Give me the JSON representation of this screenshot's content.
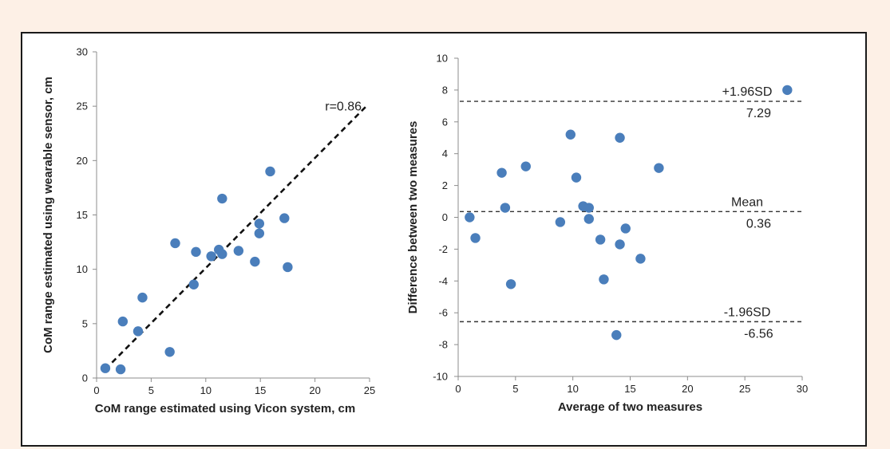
{
  "colors": {
    "page": "#fdf0e6",
    "panel": "#ffffff",
    "marker": "#4a7ebb",
    "axis": "#8c8c8c",
    "line": "#111111"
  },
  "chart_data": [
    {
      "type": "scatter",
      "xlabel": "CoM range estimated using Vicon system, cm",
      "ylabel": "CoM range estimated using wearable sensor, cm",
      "xlim": [
        0,
        25
      ],
      "ylim": [
        0,
        30
      ],
      "xticks": [
        "0",
        "5",
        "10",
        "15",
        "20",
        "25"
      ],
      "yticks": [
        "0",
        "5",
        "10",
        "15",
        "20",
        "25",
        "30"
      ],
      "grid": false,
      "annotation": "r=0.86",
      "trendline": {
        "style": "dashed",
        "x": [
          0.8,
          24.8
        ],
        "y": [
          0.8,
          25.1
        ]
      },
      "points": [
        [
          0.8,
          0.9
        ],
        [
          2.2,
          0.8
        ],
        [
          2.4,
          5.2
        ],
        [
          3.8,
          4.3
        ],
        [
          4.2,
          7.4
        ],
        [
          6.7,
          2.4
        ],
        [
          7.2,
          12.4
        ],
        [
          8.9,
          8.6
        ],
        [
          9.1,
          11.6
        ],
        [
          10.5,
          11.2
        ],
        [
          11.2,
          11.8
        ],
        [
          11.5,
          11.4
        ],
        [
          11.5,
          16.5
        ],
        [
          13.0,
          11.7
        ],
        [
          14.5,
          10.7
        ],
        [
          14.9,
          14.2
        ],
        [
          14.9,
          13.3
        ],
        [
          15.9,
          19.0
        ],
        [
          17.2,
          14.7
        ],
        [
          17.5,
          10.2
        ]
      ]
    },
    {
      "type": "scatter",
      "xlabel": "Average of two measures",
      "ylabel": "Difference between two measures",
      "xlim": [
        0,
        30
      ],
      "ylim": [
        -10,
        10
      ],
      "xticks": [
        "0",
        "5",
        "10",
        "15",
        "20",
        "25",
        "30"
      ],
      "yticks": [
        "-10",
        "-8",
        "-6",
        "-4",
        "-2",
        "0",
        "2",
        "4",
        "6",
        "8",
        "10"
      ],
      "grid": false,
      "reference_lines": [
        {
          "label": "+1.96SD",
          "value_label": "7.29",
          "y": 7.29
        },
        {
          "label": "Mean",
          "value_label": "0.36",
          "y": 0.36
        },
        {
          "label": "-1.96SD",
          "value_label": "-6.56",
          "y": -6.56
        }
      ],
      "points": [
        [
          1.0,
          0.0
        ],
        [
          1.5,
          -1.3
        ],
        [
          3.8,
          2.8
        ],
        [
          4.1,
          0.6
        ],
        [
          4.6,
          -4.2
        ],
        [
          5.9,
          3.2
        ],
        [
          8.9,
          -0.3
        ],
        [
          9.8,
          5.2
        ],
        [
          10.3,
          2.5
        ],
        [
          10.9,
          0.7
        ],
        [
          11.4,
          0.6
        ],
        [
          11.4,
          -0.1
        ],
        [
          12.4,
          -1.4
        ],
        [
          12.7,
          -3.9
        ],
        [
          13.8,
          -7.4
        ],
        [
          14.1,
          -1.7
        ],
        [
          14.1,
          5.0
        ],
        [
          14.6,
          -0.7
        ],
        [
          15.9,
          -2.6
        ],
        [
          17.5,
          3.1
        ],
        [
          28.7,
          8.0
        ]
      ]
    }
  ]
}
